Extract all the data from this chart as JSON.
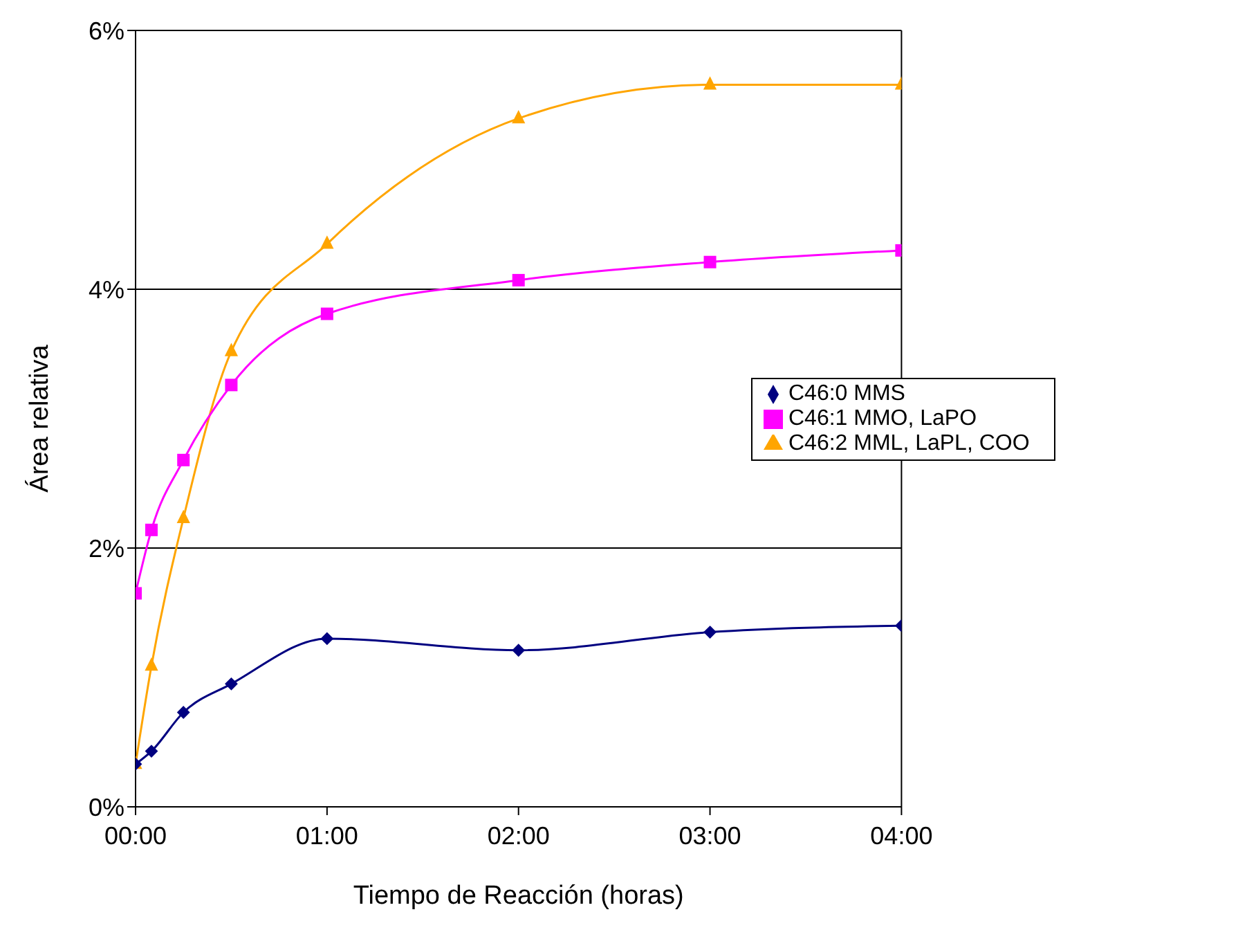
{
  "chart_data": {
    "type": "line",
    "xlabel": "Tiempo de Reacción (horas)",
    "ylabel": "Área relativa",
    "x": [
      0,
      0.083,
      0.25,
      0.5,
      1,
      2,
      3,
      4
    ],
    "xlim": [
      0,
      4
    ],
    "xticks": [
      {
        "value": 0,
        "label": "00:00"
      },
      {
        "value": 1,
        "label": "01:00"
      },
      {
        "value": 2,
        "label": "02:00"
      },
      {
        "value": 3,
        "label": "03:00"
      },
      {
        "value": 4,
        "label": "04:00"
      }
    ],
    "ylim": [
      0,
      6
    ],
    "yticks": [
      {
        "value": 0,
        "label": "0%"
      },
      {
        "value": 2,
        "label": "2%"
      },
      {
        "value": 4,
        "label": "4%"
      },
      {
        "value": 6,
        "label": "6%"
      }
    ],
    "grid": "y",
    "legend": "right",
    "series": [
      {
        "name": "C46:0 MMS",
        "color": "#000080",
        "marker": "diamond",
        "values": [
          0.33,
          0.43,
          0.73,
          0.95,
          1.3,
          1.21,
          1.35,
          1.4
        ]
      },
      {
        "name": "C46:1 MMO, LaPO",
        "color": "#ff00ff",
        "marker": "square",
        "values": [
          1.65,
          2.14,
          2.68,
          3.26,
          3.81,
          4.07,
          4.21,
          4.3
        ]
      },
      {
        "name": "C46:2 MML, LaPL, COO",
        "color": "#ffa500",
        "marker": "triangle",
        "values": [
          0.33,
          1.09,
          2.23,
          3.52,
          4.35,
          5.32,
          5.58,
          5.58
        ]
      }
    ]
  }
}
